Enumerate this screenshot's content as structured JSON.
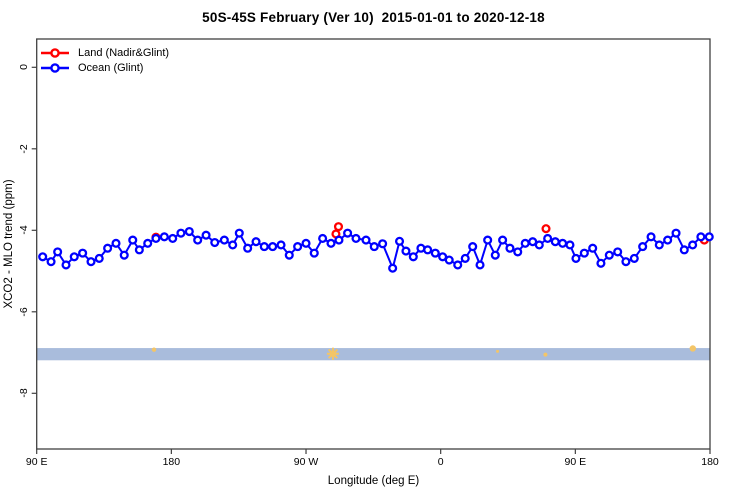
{
  "title": "50S-45S February (Ver 10)  2015-01-01 to 2020-12-18",
  "legend": {
    "items": [
      {
        "label": "Land (Nadir&Glint)",
        "color": "#ff0000"
      },
      {
        "label": "Ocean (Glint)",
        "color": "#0000ff"
      }
    ]
  },
  "chart_data": {
    "type": "line",
    "title": "50S-45S February (Ver 10)  2015-01-01 to 2020-12-18",
    "xlabel": "Longitude (deg E)",
    "ylabel": "XCO2 - MLO trend (ppm)",
    "legend_position": "top-left",
    "grid": false,
    "x_axis": {
      "note": "axis degrees run eastward from 90E (90) through 180 (180), 90W (270), 0 (360), 90E (450) to 180 (540)",
      "range_deg": [
        90,
        540
      ],
      "ticks": [
        {
          "deg": 90,
          "label": "90 E"
        },
        {
          "deg": 180,
          "label": "180"
        },
        {
          "deg": 270,
          "label": "90 W"
        },
        {
          "deg": 360,
          "label": "0"
        },
        {
          "deg": 450,
          "label": "90 E"
        },
        {
          "deg": 540,
          "label": "180"
        }
      ]
    },
    "y_axis": {
      "range": [
        0.7,
        -9.37
      ],
      "ticks": [
        {
          "v": 0,
          "label": "0"
        },
        {
          "v": -2,
          "label": "-2"
        },
        {
          "v": -4,
          "label": "-4"
        },
        {
          "v": -6,
          "label": "-6"
        },
        {
          "v": -8,
          "label": "-8"
        }
      ]
    },
    "band": {
      "from": -6.89,
      "to": -7.19,
      "color": "#a9bcdc"
    },
    "band_marks": {
      "color": "#f3c568",
      "points": [
        {
          "deg": 168.4,
          "v": -6.93,
          "r": 2.2,
          "shape": "dot"
        },
        {
          "deg": 288.0,
          "v": -7.03,
          "r": 6.0,
          "shape": "asterisk"
        },
        {
          "deg": 398.0,
          "v": -6.97,
          "r": 1.5,
          "shape": "dot"
        },
        {
          "deg": 430.0,
          "v": -7.05,
          "r": 2.0,
          "shape": "dot"
        },
        {
          "deg": 528.5,
          "v": -6.9,
          "r": 3.2,
          "shape": "dot"
        }
      ]
    },
    "series": [
      {
        "name": "Land (Nadir&Glint)",
        "color": "#ff0000",
        "marker": "open-circle",
        "connect": false,
        "points": [
          [
            169.7,
            -4.17
          ],
          [
            290.0,
            -4.09
          ],
          [
            291.7,
            -3.91
          ],
          [
            430.4,
            -3.96
          ],
          [
            536.2,
            -4.24
          ]
        ]
      },
      {
        "name": "Ocean (Glint)",
        "color": "#0000ff",
        "marker": "open-circle",
        "connect": true,
        "points": [
          [
            94.0,
            -4.65
          ],
          [
            99.6,
            -4.77
          ],
          [
            104.0,
            -4.53
          ],
          [
            109.6,
            -4.85
          ],
          [
            115.1,
            -4.65
          ],
          [
            120.7,
            -4.56
          ],
          [
            126.3,
            -4.77
          ],
          [
            131.8,
            -4.69
          ],
          [
            137.4,
            -4.44
          ],
          [
            143.0,
            -4.32
          ],
          [
            148.5,
            -4.61
          ],
          [
            154.2,
            -4.24
          ],
          [
            158.6,
            -4.48
          ],
          [
            164.2,
            -4.32
          ],
          [
            169.7,
            -4.2
          ],
          [
            175.3,
            -4.16
          ],
          [
            180.9,
            -4.2
          ],
          [
            186.4,
            -4.07
          ],
          [
            192.0,
            -4.03
          ],
          [
            197.6,
            -4.24
          ],
          [
            203.2,
            -4.12
          ],
          [
            209.0,
            -4.3
          ],
          [
            215.4,
            -4.24
          ],
          [
            221.0,
            -4.36
          ],
          [
            225.4,
            -4.07
          ],
          [
            231.0,
            -4.44
          ],
          [
            236.6,
            -4.28
          ],
          [
            242.1,
            -4.4
          ],
          [
            247.7,
            -4.4
          ],
          [
            253.3,
            -4.36
          ],
          [
            258.8,
            -4.61
          ],
          [
            264.4,
            -4.4
          ],
          [
            270.0,
            -4.32
          ],
          [
            275.5,
            -4.56
          ],
          [
            281.1,
            -4.2
          ],
          [
            286.7,
            -4.32
          ],
          [
            292.0,
            -4.24
          ],
          [
            297.8,
            -4.07
          ],
          [
            303.4,
            -4.2
          ],
          [
            310.1,
            -4.24
          ],
          [
            315.6,
            -4.4
          ],
          [
            321.2,
            -4.33
          ],
          [
            327.9,
            -4.93
          ],
          [
            332.5,
            -4.27
          ],
          [
            336.8,
            -4.51
          ],
          [
            341.7,
            -4.65
          ],
          [
            346.8,
            -4.44
          ],
          [
            351.3,
            -4.48
          ],
          [
            356.4,
            -4.56
          ],
          [
            361.3,
            -4.65
          ],
          [
            365.7,
            -4.73
          ],
          [
            371.4,
            -4.85
          ],
          [
            376.4,
            -4.69
          ],
          [
            381.4,
            -4.4
          ],
          [
            386.3,
            -4.85
          ],
          [
            391.4,
            -4.24
          ],
          [
            396.5,
            -4.61
          ],
          [
            401.4,
            -4.24
          ],
          [
            406.3,
            -4.44
          ],
          [
            411.5,
            -4.53
          ],
          [
            416.5,
            -4.32
          ],
          [
            421.5,
            -4.28
          ],
          [
            425.9,
            -4.36
          ],
          [
            431.5,
            -4.2
          ],
          [
            436.6,
            -4.28
          ],
          [
            441.5,
            -4.32
          ],
          [
            446.4,
            -4.36
          ],
          [
            450.4,
            -4.69
          ],
          [
            456.0,
            -4.56
          ],
          [
            461.6,
            -4.44
          ],
          [
            467.1,
            -4.81
          ],
          [
            472.7,
            -4.61
          ],
          [
            478.3,
            -4.53
          ],
          [
            483.8,
            -4.77
          ],
          [
            489.4,
            -4.69
          ],
          [
            495.0,
            -4.4
          ],
          [
            500.6,
            -4.16
          ],
          [
            506.1,
            -4.36
          ],
          [
            511.7,
            -4.24
          ],
          [
            517.3,
            -4.07
          ],
          [
            522.8,
            -4.48
          ],
          [
            528.4,
            -4.36
          ],
          [
            533.9,
            -4.16
          ],
          [
            539.5,
            -4.16
          ]
        ]
      }
    ]
  }
}
